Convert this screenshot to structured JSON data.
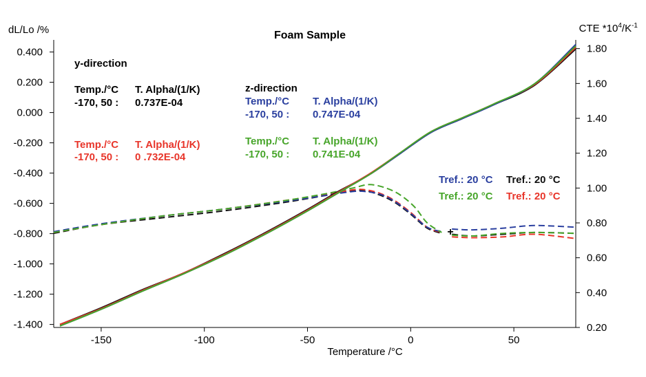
{
  "chart_data": {
    "type": "line",
    "title": "Foam Sample",
    "xlabel": "Temperature /°C",
    "ylabel_left": "dL/Lo /%",
    "ylabel_right_base": "CTE *10",
    "ylabel_right_exp": "4",
    "ylabel_right_unit": "/K",
    "ylabel_right_exp2": "-1",
    "xlim": [
      -173,
      80
    ],
    "ylim_left": [
      -1.42,
      0.48
    ],
    "ylim_right": [
      0.2,
      1.85
    ],
    "x_ticks": [
      -150,
      -100,
      -50,
      0,
      50
    ],
    "x_tick_labels": [
      "-150",
      "-100",
      "-50",
      "0",
      "50"
    ],
    "y_left_ticks": [
      0.4,
      0.2,
      0.0,
      -0.2,
      -0.4,
      -0.6,
      -0.8,
      -1.0,
      -1.2,
      -1.4
    ],
    "y_left_tick_labels": [
      "0.400",
      "0.200",
      "0.000",
      "-0.200",
      "-0.400",
      "-0.600",
      "-0.800",
      "-1.000",
      "-1.200",
      "-1.400"
    ],
    "y_right_ticks": [
      1.8,
      1.6,
      1.4,
      1.2,
      1.0,
      0.8,
      0.6,
      0.4,
      0.2
    ],
    "y_right_tick_labels": [
      "1.80",
      "1.60",
      "1.40",
      "1.20",
      "1.00",
      "0.80",
      "0.60",
      "0.40",
      "0.20"
    ],
    "colors": {
      "black": "#111111",
      "red": "#e8352a",
      "blue": "#2a3f9f",
      "green": "#47a52a"
    },
    "dl_series": [
      {
        "name": "y-direction (black)",
        "color": "#111111",
        "axis": "left",
        "style": "solid",
        "x": [
          -170,
          -150,
          -130,
          -110,
          -90,
          -70,
          -50,
          -35,
          -20,
          -5,
          10,
          25,
          40,
          60,
          80
        ],
        "y": [
          -1.4,
          -1.29,
          -1.17,
          -1.06,
          -0.93,
          -0.79,
          -0.64,
          -0.52,
          -0.41,
          -0.27,
          -0.13,
          -0.04,
          0.05,
          0.18,
          0.42
        ]
      },
      {
        "name": "y-direction (red)",
        "color": "#e8352a",
        "axis": "left",
        "style": "solid",
        "x": [
          -170,
          -150,
          -130,
          -110,
          -90,
          -70,
          -50,
          -35,
          -20,
          -5,
          10,
          25,
          40,
          60,
          80
        ],
        "y": [
          -1.4,
          -1.295,
          -1.175,
          -1.06,
          -0.935,
          -0.795,
          -0.645,
          -0.525,
          -0.405,
          -0.265,
          -0.125,
          -0.035,
          0.055,
          0.185,
          0.43
        ]
      },
      {
        "name": "z-direction (blue)",
        "color": "#2a3f9f",
        "axis": "left",
        "style": "solid",
        "x": [
          -170,
          -150,
          -130,
          -110,
          -90,
          -70,
          -50,
          -35,
          -20,
          -5,
          10,
          25,
          40,
          60,
          80
        ],
        "y": [
          -1.41,
          -1.3,
          -1.18,
          -1.065,
          -0.94,
          -0.8,
          -0.65,
          -0.53,
          -0.41,
          -0.27,
          -0.13,
          -0.04,
          0.05,
          0.19,
          0.45
        ]
      },
      {
        "name": "z-direction (green)",
        "color": "#47a52a",
        "axis": "left",
        "style": "solid",
        "x": [
          -170,
          -150,
          -130,
          -110,
          -90,
          -70,
          -50,
          -35,
          -20,
          -5,
          10,
          25,
          40,
          60,
          80
        ],
        "y": [
          -1.41,
          -1.3,
          -1.18,
          -1.065,
          -0.94,
          -0.8,
          -0.65,
          -0.53,
          -0.41,
          -0.265,
          -0.125,
          -0.035,
          0.055,
          0.19,
          0.44
        ]
      }
    ],
    "cte_series": [
      {
        "name": "CTE black",
        "color": "#111111",
        "axis": "right",
        "style": "dashed",
        "segments": [
          {
            "x": [
              -173,
              -150,
              -120,
              -90,
              -60,
              -40,
              -28,
              -22,
              -15,
              -8,
              0,
              8,
              15
            ],
            "y": [
              0.74,
              0.79,
              0.83,
              0.87,
              0.92,
              0.96,
              0.985,
              0.985,
              0.96,
              0.92,
              0.85,
              0.77,
              0.74
            ]
          },
          {
            "x": [
              20,
              30,
              45,
              60,
              80
            ],
            "y": [
              0.735,
              0.725,
              0.735,
              0.745,
              0.74
            ]
          }
        ]
      },
      {
        "name": "CTE red",
        "color": "#e8352a",
        "axis": "right",
        "style": "dashed",
        "segments": [
          {
            "x": [
              -173,
              -150,
              -120,
              -90,
              -60,
              -40,
              -28,
              -22,
              -15,
              -8,
              0,
              8,
              15
            ],
            "y": [
              0.745,
              0.79,
              0.84,
              0.88,
              0.93,
              0.965,
              0.99,
              0.99,
              0.97,
              0.93,
              0.86,
              0.775,
              0.745
            ]
          },
          {
            "x": [
              20,
              30,
              45,
              60,
              80
            ],
            "y": [
              0.72,
              0.715,
              0.72,
              0.735,
              0.71
            ]
          }
        ]
      },
      {
        "name": "CTE blue",
        "color": "#2a3f9f",
        "axis": "right",
        "style": "dashed",
        "segments": [
          {
            "x": [
              -173,
              -150,
              -120,
              -90,
              -60,
              -40,
              -28,
              -22,
              -15,
              -8,
              0,
              8,
              15
            ],
            "y": [
              0.75,
              0.795,
              0.84,
              0.88,
              0.925,
              0.96,
              0.98,
              0.98,
              0.965,
              0.925,
              0.855,
              0.775,
              0.75
            ]
          },
          {
            "x": [
              20,
              30,
              45,
              60,
              80
            ],
            "y": [
              0.765,
              0.76,
              0.77,
              0.785,
              0.775
            ]
          }
        ]
      },
      {
        "name": "CTE green",
        "color": "#47a52a",
        "axis": "right",
        "style": "dashed",
        "segments": [
          {
            "x": [
              -173,
              -150,
              -120,
              -90,
              -60,
              -40,
              -28,
              -20,
              -12,
              -5,
              2,
              8,
              15
            ],
            "y": [
              0.745,
              0.79,
              0.84,
              0.88,
              0.93,
              0.97,
              1.0,
              1.02,
              1.0,
              0.96,
              0.89,
              0.8,
              0.745
            ]
          },
          {
            "x": [
              20,
              30,
              45,
              60,
              80
            ],
            "y": [
              0.73,
              0.725,
              0.74,
              0.745,
              0.74
            ]
          }
        ]
      }
    ],
    "annotations": {
      "y_direction": "y-direction",
      "y_header_temp": "Temp./°C",
      "y_header_alpha": "T. Alpha/(1/K)",
      "y_black_range": "-170, 50 :",
      "y_black_value": "0.737E-04",
      "y_red_temp": "Temp./°C",
      "y_red_alpha": "T. Alpha/(1/K)",
      "y_red_range": "-170, 50 :",
      "y_red_value": "0  .732E-04",
      "z_direction": "z-direction",
      "z_blue_temp": "Temp./°C",
      "z_blue_alpha": "T. Alpha/(1/K)",
      "z_blue_range": "-170, 50 :",
      "z_blue_value": "0.747E-04",
      "z_green_temp": "Temp./°C",
      "z_green_alpha": "T. Alpha/(1/K)",
      "z_green_range": "-170, 50 :",
      "z_green_value": "0.741E-04",
      "tref_blue": "Tref.: 20 °C",
      "tref_black": "Tref.: 20 °C",
      "tref_green": "Tref.: 20 °C",
      "tref_red": "Tref.: 20 °C",
      "marker": "+"
    }
  }
}
